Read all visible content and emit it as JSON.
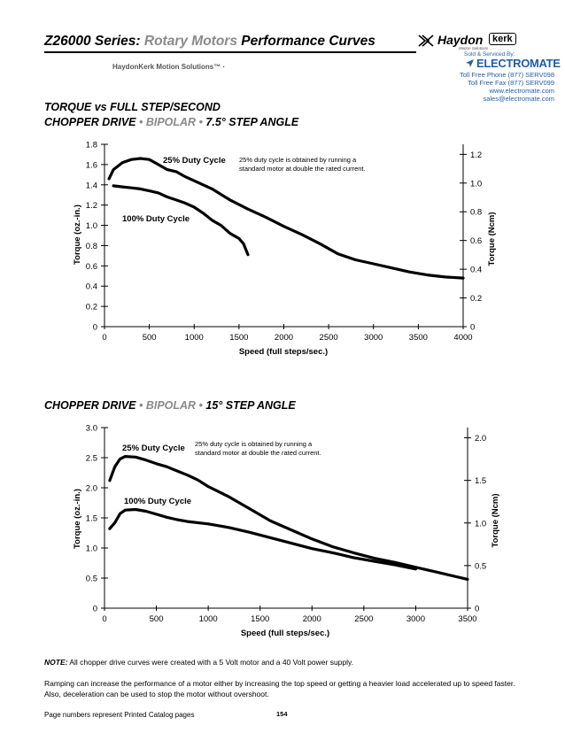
{
  "header": {
    "title_part1": "Z26000 Series: ",
    "title_part2": "Rotary Motors",
    "title_part3": " Performance Curves",
    "subtitle": "HaydonKerk Motion Solutions™ ·",
    "logo_name": "Haydon",
    "logo_kerk": "kerk",
    "logo_tagline": "Motion Solutions",
    "sold_by": "Sold & Serviced By:",
    "distributor": "ELECTROMATE",
    "phone": "Toll Free Phone  (877) SERV098",
    "fax": "Toll Free Fax  (877) SERV099",
    "website": "www.electromate.com",
    "email": "sales@electromate.com"
  },
  "sections": {
    "chart1_line1": "TORQUE vs FULL STEP/SECOND",
    "chart1_line2_a": "CHOPPER DRIVE ",
    "chart1_line2_b": " • BIPOLAR • ",
    "chart1_line2_c": "7.5° STEP ANGLE",
    "chart2_a": "CHOPPER DRIVE",
    "chart2_b": " • BIPOLAR • ",
    "chart2_c": "15° STEP ANGLE"
  },
  "chart_data": [
    {
      "type": "line",
      "title": "TORQUE vs FULL STEP/SECOND — CHOPPER DRIVE • BIPOLAR • 7.5° STEP ANGLE",
      "xlabel": "Speed (full steps/sec.)",
      "ylabel": "Torque (oz.-in.)",
      "y2label": "Torque (Ncm)",
      "xlim": [
        0,
        4000
      ],
      "ylim": [
        0,
        1.8
      ],
      "y2lim": [
        0,
        1.27
      ],
      "xticks": [
        0,
        500,
        1000,
        1500,
        2000,
        2500,
        3000,
        3500,
        4000
      ],
      "yticks": [
        0,
        0.2,
        0.4,
        0.6,
        0.8,
        1.0,
        1.2,
        1.4,
        1.6,
        1.8
      ],
      "yticklabels": [
        "0",
        "0.2",
        "0.4",
        "0.6",
        "0.8",
        "1.0",
        "1.2",
        "1.4",
        "1.6",
        "1.8"
      ],
      "y2ticks": [
        0,
        0.2,
        0.4,
        0.6,
        0.8,
        1.0,
        1.2
      ],
      "y2ticklabels": [
        "0",
        "0.2",
        "0.4",
        "0.6",
        "0.8",
        "1.0",
        "1.2"
      ],
      "grid": false,
      "note_line1": "25% duty cycle is obtained by running a",
      "note_line2": "standard motor at double the rated current.",
      "series": [
        {
          "name": "25% Duty Cycle",
          "x": [
            50,
            100,
            200,
            300,
            400,
            500,
            600,
            700,
            800,
            900,
            1000,
            1200,
            1400,
            1600,
            1800,
            2000,
            2200,
            2400,
            2600,
            2800,
            3000,
            3200,
            3400,
            3600,
            3800,
            4000
          ],
          "y": [
            1.46,
            1.55,
            1.62,
            1.65,
            1.66,
            1.65,
            1.6,
            1.55,
            1.53,
            1.48,
            1.44,
            1.36,
            1.25,
            1.16,
            1.08,
            0.99,
            0.91,
            0.82,
            0.72,
            0.66,
            0.62,
            0.58,
            0.54,
            0.51,
            0.49,
            0.48
          ]
        },
        {
          "name": "100% Duty Cycle",
          "x": [
            100,
            200,
            300,
            400,
            500,
            600,
            700,
            800,
            900,
            1000,
            1100,
            1200,
            1300,
            1400,
            1500,
            1550,
            1600
          ],
          "y": [
            1.39,
            1.38,
            1.37,
            1.36,
            1.34,
            1.32,
            1.28,
            1.25,
            1.22,
            1.18,
            1.12,
            1.05,
            1.0,
            0.92,
            0.87,
            0.82,
            0.71
          ]
        }
      ]
    },
    {
      "type": "line",
      "title": "CHOPPER DRIVE • BIPOLAR • 15° STEP ANGLE",
      "xlabel": "Speed (full steps/sec.)",
      "ylabel": "Torque (oz.-in.)",
      "y2label": "Torque (Ncm)",
      "xlim": [
        0,
        3500
      ],
      "ylim": [
        0,
        3.0
      ],
      "y2lim": [
        0,
        2.12
      ],
      "xticks": [
        0,
        500,
        1000,
        1500,
        2000,
        2500,
        3000,
        3500
      ],
      "yticks": [
        0,
        0.5,
        1.0,
        1.5,
        2.0,
        2.5,
        3.0
      ],
      "yticklabels": [
        "0",
        "0.5",
        "1.0",
        "1.5",
        "2.0",
        "2.5",
        "3.0"
      ],
      "y2ticks": [
        0,
        0.5,
        1.0,
        1.5,
        2.0
      ],
      "y2ticklabels": [
        "0",
        "0.5",
        "1.0",
        "1.5",
        "2.0"
      ],
      "grid": false,
      "note_line1": "25% duty cycle is obtained by running a",
      "note_line2": "standard motor at double the rated current.",
      "series": [
        {
          "name": "25% Duty Cycle",
          "x": [
            50,
            100,
            150,
            200,
            300,
            400,
            500,
            600,
            700,
            800,
            900,
            1000,
            1200,
            1400,
            1600,
            1800,
            2000,
            2200,
            2400,
            2600,
            2800,
            3000,
            3200,
            3500
          ],
          "y": [
            2.12,
            2.35,
            2.48,
            2.52,
            2.51,
            2.46,
            2.4,
            2.35,
            2.28,
            2.21,
            2.13,
            2.02,
            1.85,
            1.65,
            1.45,
            1.3,
            1.15,
            1.02,
            0.92,
            0.83,
            0.76,
            0.68,
            0.6,
            0.48
          ]
        },
        {
          "name": "100% Duty Cycle",
          "x": [
            50,
            100,
            150,
            200,
            300,
            400,
            500,
            600,
            700,
            800,
            1000,
            1200,
            1400,
            1600,
            1800,
            2000,
            2200,
            2400,
            2600,
            2800,
            3000
          ],
          "y": [
            1.32,
            1.42,
            1.57,
            1.63,
            1.64,
            1.61,
            1.56,
            1.51,
            1.47,
            1.44,
            1.4,
            1.34,
            1.26,
            1.17,
            1.08,
            0.99,
            0.92,
            0.84,
            0.78,
            0.72,
            0.65
          ]
        }
      ]
    }
  ],
  "notes": {
    "note_label": "NOTE:",
    "note_text": " All chopper drive curves were created with a 5 Volt motor and a 40 Volt power supply.",
    "ramping": "Ramping can increase the performance of a motor either by increasing the top speed or getting a heavier load accelerated up to speed faster.  Also, deceleration can be used to stop the motor without overshoot.",
    "page_note": "Page numbers represent Printed Catalog pages",
    "page_number": "154"
  },
  "colors": {
    "title_accent": "#8a8a8a",
    "distributor_blue": "#1f5ea8",
    "curve": "#000000"
  }
}
